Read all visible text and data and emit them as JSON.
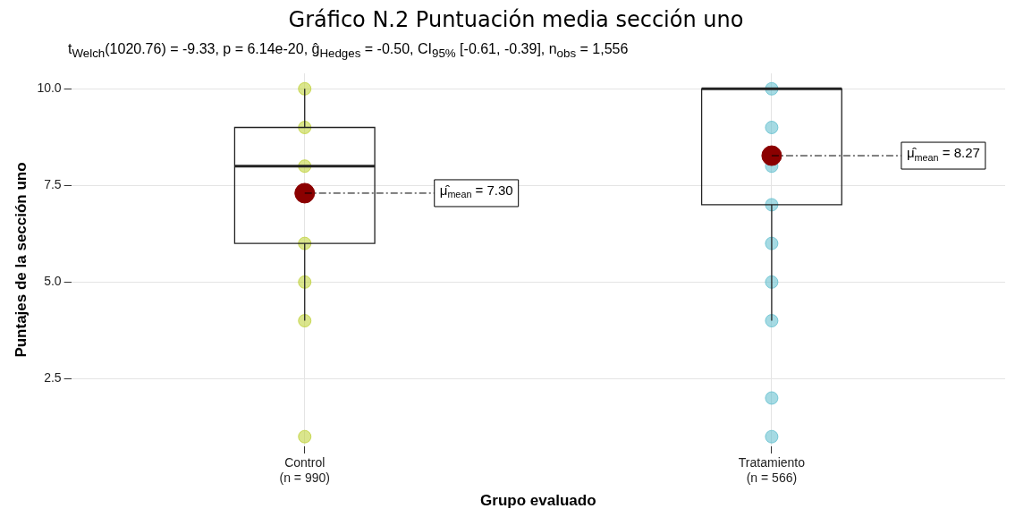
{
  "chart_data": {
    "type": "box",
    "title": "Gráfico N.2 Puntuación media sección uno",
    "subtitle": "t$_{Welch}$(1020.76) = -9.33, p = 6.14e-20, ĝ$_{Hedges}$ = -0.50, CI$_{95%}$ [-0.61, -0.39], n$_{obs}$ = 1,556",
    "xlabel": "Grupo evaluado",
    "ylabel": "Puntajes de la sección uno",
    "categories": [
      "Control\n(n = 990)",
      "Tratamiento\n(n = 566)"
    ],
    "boxes": [
      {
        "low": 4,
        "q1": 6,
        "median": 8,
        "q3": 9,
        "high": 10,
        "mean": 7.3
      },
      {
        "low": 4,
        "q1": 7,
        "median": 10,
        "q3": 10,
        "high": 10,
        "mean": 8.27
      }
    ],
    "series": [
      {
        "type": "scatter",
        "color": "#bccf2e",
        "x": [
          "Control\n(n = 990)",
          "Control\n(n = 990)",
          "Control\n(n = 990)",
          "Control\n(n = 990)",
          "Control\n(n = 990)",
          "Control\n(n = 990)",
          "Control\n(n = 990)"
        ],
        "values": [
          1,
          4,
          5,
          6,
          8,
          9,
          10
        ]
      },
      {
        "type": "scatter",
        "color": "#5bbccc",
        "x": [
          "Tratamiento\n(n = 566)",
          "Tratamiento\n(n = 566)",
          "Tratamiento\n(n = 566)",
          "Tratamiento\n(n = 566)",
          "Tratamiento\n(n = 566)",
          "Tratamiento\n(n = 566)",
          "Tratamiento\n(n = 566)",
          "Tratamiento\n(n = 566)",
          "Tratamiento\n(n = 566)"
        ],
        "values": [
          1,
          2,
          4,
          5,
          6,
          7,
          8,
          9,
          10
        ]
      }
    ],
    "annotations": [
      "μ̂$_{mean}$ = 7.30",
      "μ̂$_{mean}$ = 8.27"
    ],
    "ylim": [
      0.75,
      10.4
    ],
    "yticks": [
      {
        "value": 2.5,
        "label": "2.5"
      },
      {
        "value": 5,
        "label": "5.0"
      },
      {
        "value": 7.5,
        "label": "7.5"
      },
      {
        "value": 10,
        "label": "10.0"
      }
    ],
    "grid": true,
    "legend": false
  }
}
